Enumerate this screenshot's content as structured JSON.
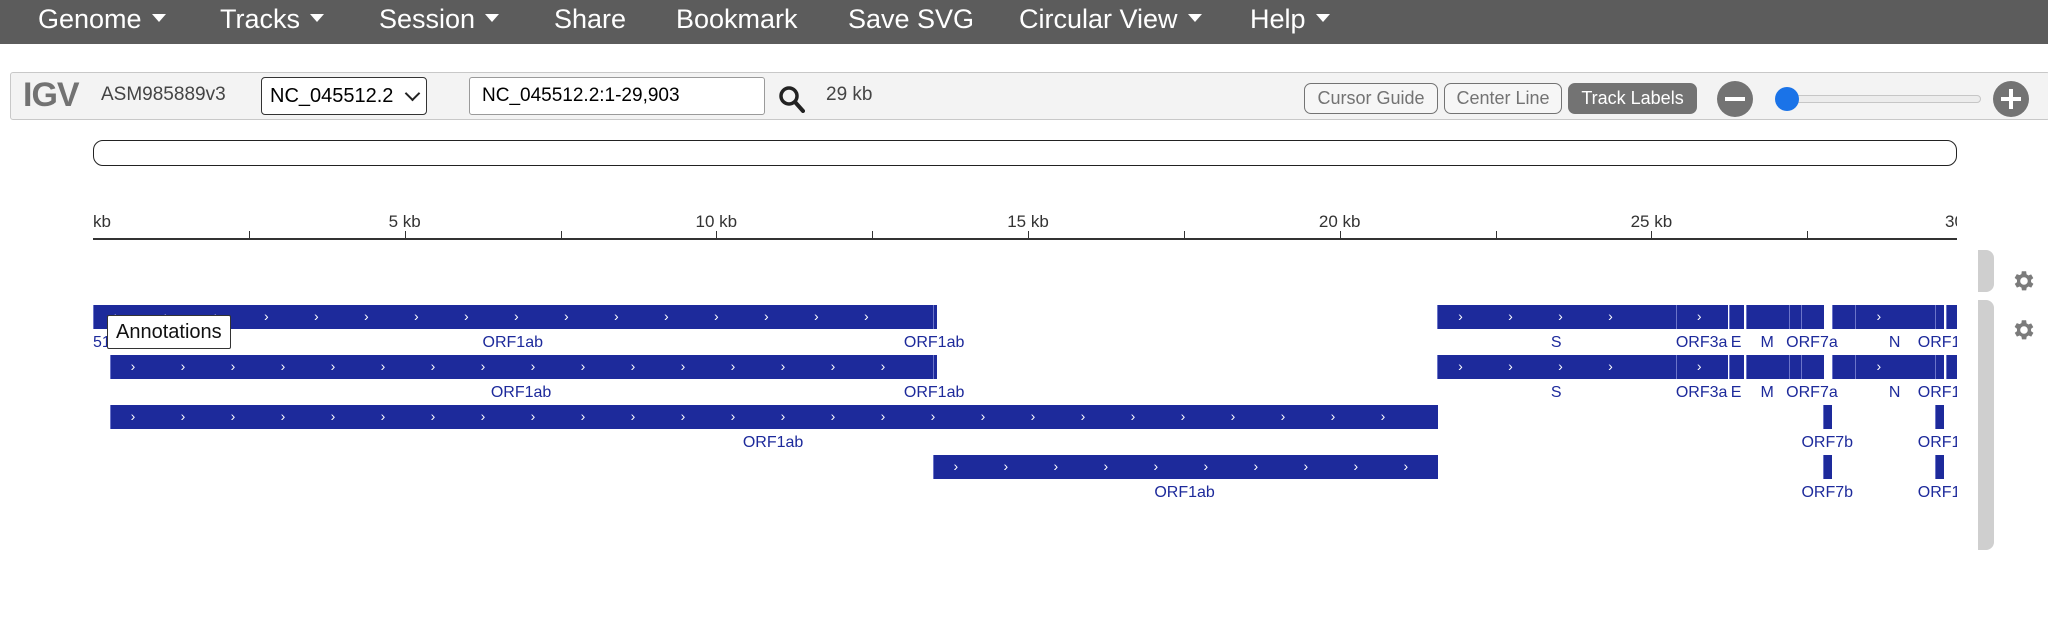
{
  "nav": {
    "items": [
      {
        "label": "Genome",
        "dropdown": true
      },
      {
        "label": "Tracks",
        "dropdown": true
      },
      {
        "label": "Session",
        "dropdown": true
      },
      {
        "label": "Share",
        "dropdown": false
      },
      {
        "label": "Bookmark",
        "dropdown": false
      },
      {
        "label": "Save SVG",
        "dropdown": false
      },
      {
        "label": "Circular View",
        "dropdown": true
      },
      {
        "label": "Help",
        "dropdown": true
      }
    ]
  },
  "toolbar": {
    "logo": "IGV",
    "genome": "ASM985889v3",
    "chromosome": "NC_045512.2",
    "locus": "NC_045512.2:1-29,903",
    "window_size": "29 kb",
    "cursor_guide_label": "Cursor Guide",
    "center_line_label": "Center Line",
    "track_labels_label": "Track Labels",
    "track_labels_active": true,
    "zoom_level": 0.02
  },
  "ruler": {
    "range_bp": [
      0,
      29903
    ],
    "ticks": [
      {
        "bp": 0,
        "label": "kb"
      },
      {
        "bp": 5000,
        "label": "5 kb"
      },
      {
        "bp": 10000,
        "label": "10 kb"
      },
      {
        "bp": 15000,
        "label": "15 kb"
      },
      {
        "bp": 20000,
        "label": "20 kb"
      },
      {
        "bp": 25000,
        "label": "25 kb"
      },
      {
        "bp": 30000,
        "label": "30"
      }
    ]
  },
  "track": {
    "name": "Annotations",
    "features": [
      {
        "row": 0,
        "start": 0,
        "end": 13468,
        "label": "ORF1ab"
      },
      {
        "row": 0,
        "start": 13468,
        "end": 13520,
        "label": "ORF1ab"
      },
      {
        "row": 0,
        "start": 21563,
        "end": 25384,
        "label": "S"
      },
      {
        "row": 0,
        "start": 25393,
        "end": 26220,
        "label": "ORF3a"
      },
      {
        "row": 0,
        "start": 26245,
        "end": 26472,
        "label": "E"
      },
      {
        "row": 0,
        "start": 26523,
        "end": 27191,
        "label": "M"
      },
      {
        "row": 0,
        "start": 27202,
        "end": 27387,
        "label": ""
      },
      {
        "row": 0,
        "start": 27394,
        "end": 27759,
        "label": "ORF7a"
      },
      {
        "row": 0,
        "start": 27894,
        "end": 28259,
        "label": ""
      },
      {
        "row": 0,
        "start": 28274,
        "end": 29533,
        "label": "N"
      },
      {
        "row": 0,
        "start": 29558,
        "end": 29674,
        "label": "ORF1"
      },
      {
        "row": 0,
        "start": 29728,
        "end": 29903,
        "label": ""
      },
      {
        "row": 1,
        "start": 266,
        "end": 13468,
        "label": "ORF1ab"
      },
      {
        "row": 1,
        "start": 13468,
        "end": 13520,
        "label": "ORF1ab"
      },
      {
        "row": 1,
        "start": 21563,
        "end": 25384,
        "label": "S"
      },
      {
        "row": 1,
        "start": 25393,
        "end": 26220,
        "label": "ORF3a"
      },
      {
        "row": 1,
        "start": 26245,
        "end": 26472,
        "label": "E"
      },
      {
        "row": 1,
        "start": 26523,
        "end": 27191,
        "label": "M"
      },
      {
        "row": 1,
        "start": 27202,
        "end": 27387,
        "label": ""
      },
      {
        "row": 1,
        "start": 27394,
        "end": 27759,
        "label": "ORF7a"
      },
      {
        "row": 1,
        "start": 27894,
        "end": 28259,
        "label": ""
      },
      {
        "row": 1,
        "start": 28274,
        "end": 29533,
        "label": "N"
      },
      {
        "row": 1,
        "start": 29558,
        "end": 29674,
        "label": "ORF1"
      },
      {
        "row": 1,
        "start": 29728,
        "end": 29903,
        "label": ""
      },
      {
        "row": 2,
        "start": 266,
        "end": 21555,
        "label": "ORF1ab"
      },
      {
        "row": 2,
        "start": 27756,
        "end": 27887,
        "label": "ORF7b"
      },
      {
        "row": 2,
        "start": 29558,
        "end": 29674,
        "label": "ORF1"
      },
      {
        "row": 3,
        "start": 13468,
        "end": 21555,
        "label": "ORF1ab"
      },
      {
        "row": 3,
        "start": 27756,
        "end": 27887,
        "label": "ORF7b"
      },
      {
        "row": 3,
        "start": 29558,
        "end": 29674,
        "label": "ORF1"
      }
    ],
    "partial_label": "512.2:1..265"
  }
}
